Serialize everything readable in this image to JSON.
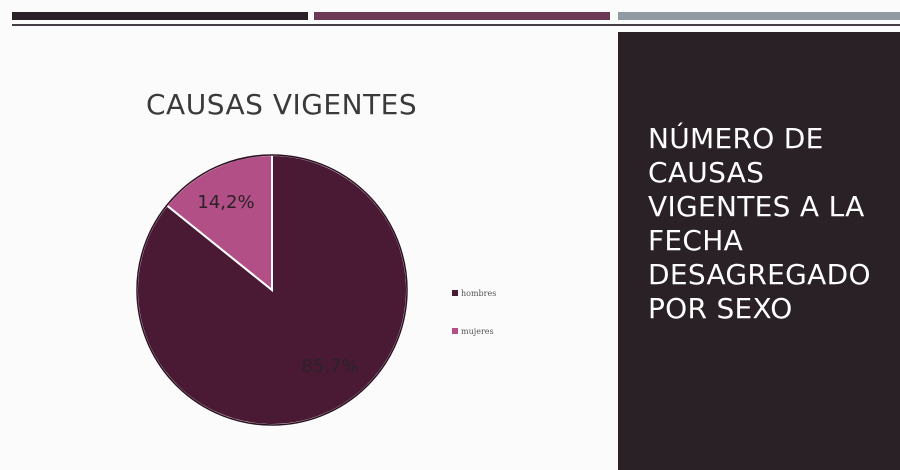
{
  "chart_data": {
    "type": "pie",
    "title": "CAUSAS VIGENTES",
    "categories": [
      "hombres",
      "mujeres"
    ],
    "values": [
      85.7,
      14.2
    ],
    "data_labels": [
      "85,7%",
      "14,2%"
    ],
    "colors": [
      "#4a1a34",
      "#b14f86"
    ],
    "legend_position": "right"
  },
  "side_panel": {
    "text": "NÚMERO DE\nCAUSAS\nVIGENTES A LA\nFECHA\nDESAGREGADO\nPOR SEXO"
  }
}
